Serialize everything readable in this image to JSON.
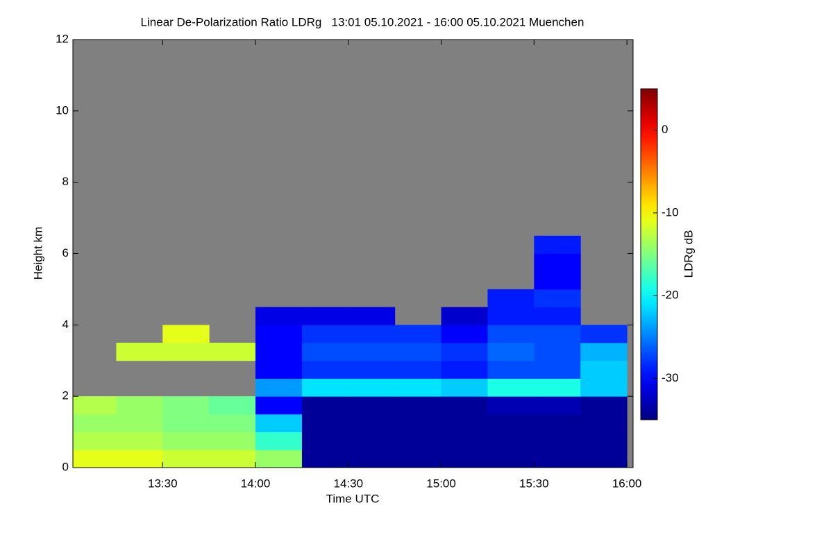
{
  "chart_data": {
    "type": "heatmap",
    "title": "Linear De-Polarization Ratio LDRg   13:01 05.10.2021 - 16:00 05.10.2021 Muenchen",
    "x_label": "Time UTC",
    "y_label": "Height km",
    "colorbar_label": "LDRg dB",
    "xlim": [
      13.0167,
      16.0333
    ],
    "xticks": [
      {
        "value": 13.5,
        "label": "13:30"
      },
      {
        "value": 14,
        "label": "14:00"
      },
      {
        "value": 14.5,
        "label": "14:30"
      },
      {
        "value": 15,
        "label": "15:00"
      },
      {
        "value": 15.5,
        "label": "15:30"
      },
      {
        "value": 16,
        "label": "16:00"
      }
    ],
    "ylim": [
      0,
      12
    ],
    "yticks": [
      0,
      2,
      4,
      6,
      8,
      10,
      12
    ],
    "clim": [
      -35,
      5
    ],
    "cticks": [
      -30,
      -20,
      -10,
      0
    ],
    "colormap": "jet",
    "background_color": "#808080",
    "x_bins": [
      13,
      13.25,
      13.5,
      13.75,
      14,
      14.25,
      14.5,
      14.75,
      15,
      15.25,
      15.5,
      15.75,
      16
    ],
    "y_bins": [
      0,
      0.5,
      1,
      1.5,
      2,
      2.5,
      3,
      3.5,
      4,
      4.5,
      5,
      5.5,
      6,
      6.5,
      7
    ],
    "z": [
      [
        -11,
        -11,
        -12,
        -12,
        -14,
        -34,
        -34,
        -34,
        -34,
        -34,
        -34,
        -34
      ],
      [
        -13,
        -13,
        -14,
        -14,
        -18,
        -34,
        -34,
        -34,
        -34,
        -34,
        -34,
        -34
      ],
      [
        -14,
        -14,
        -15,
        -15,
        -22,
        -34,
        -34,
        -34,
        -34,
        -34,
        -34,
        -34
      ],
      [
        -13,
        -14,
        -15,
        -16,
        -30,
        -34,
        -34,
        -34,
        -34,
        -33,
        -33,
        -34
      ],
      [
        null,
        null,
        null,
        null,
        -24,
        -21,
        -21,
        -21,
        -22,
        -19,
        -19,
        -22
      ],
      [
        null,
        null,
        null,
        null,
        -30,
        -28,
        -28,
        -28,
        -29,
        -27,
        -27,
        -22
      ],
      [
        null,
        -12,
        -12,
        -12,
        -30,
        -27,
        -27,
        -27,
        -28,
        -26,
        -27,
        -23
      ],
      [
        null,
        null,
        -11,
        null,
        -30,
        -28,
        -28,
        -28,
        -30,
        -27,
        -27,
        -28
      ],
      [
        null,
        null,
        null,
        null,
        -31,
        -31,
        -31,
        null,
        -32,
        -29,
        -29,
        null
      ],
      [
        null,
        null,
        null,
        null,
        null,
        null,
        null,
        null,
        null,
        -29,
        -28,
        null
      ],
      [
        null,
        null,
        null,
        null,
        null,
        null,
        null,
        null,
        null,
        null,
        -30,
        null
      ],
      [
        null,
        null,
        null,
        null,
        null,
        null,
        null,
        null,
        null,
        null,
        -30,
        null
      ],
      [
        null,
        null,
        null,
        null,
        null,
        null,
        null,
        null,
        null,
        null,
        -29,
        null
      ],
      [
        null,
        null,
        null,
        null,
        null,
        null,
        null,
        null,
        null,
        null,
        null,
        null
      ]
    ]
  }
}
